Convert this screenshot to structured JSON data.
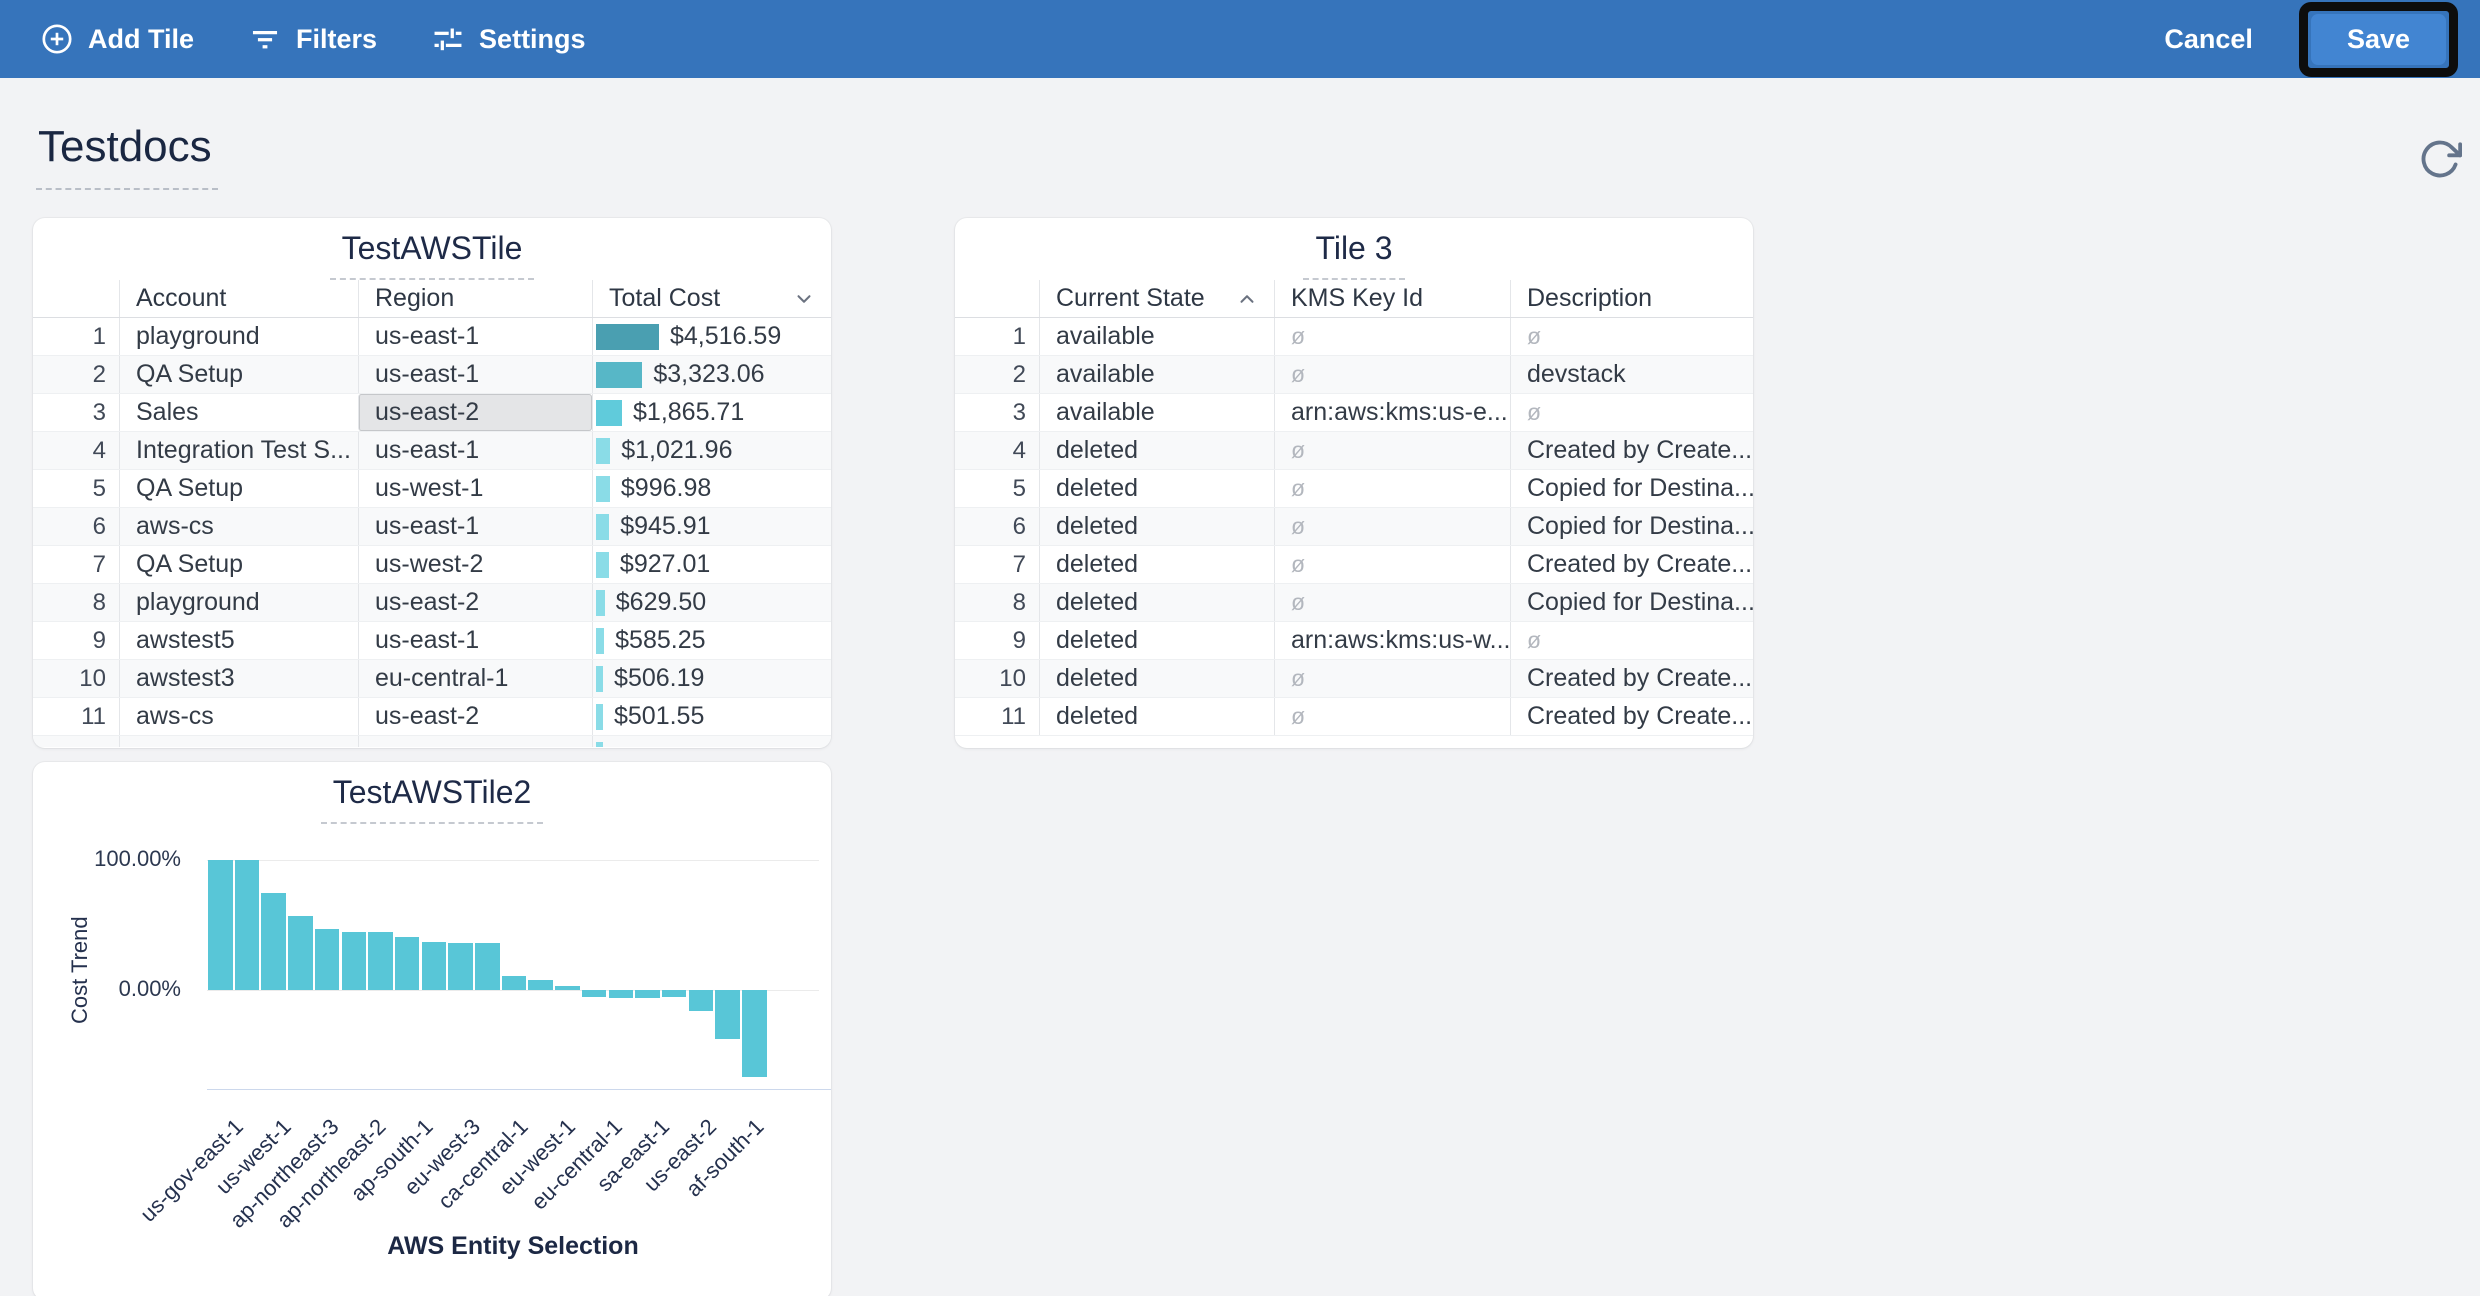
{
  "topbar": {
    "bg_color": "#3674bb",
    "add_tile": "Add Tile",
    "filters": "Filters",
    "settings": "Settings",
    "cancel": "Cancel",
    "save": "Save",
    "save_button_color": "#4285d2",
    "save_highlight_border_color": "#0d0d0d"
  },
  "page": {
    "title": "Testdocs"
  },
  "tiles": {
    "table1": {
      "title": "TestAWSTile",
      "columns": [
        "Account",
        "Region",
        "Total Cost"
      ],
      "sort": {
        "column": "Total Cost",
        "direction": "desc",
        "icon": "chevron-down-icon"
      },
      "bar_max_value": 4516.59,
      "selected_cell": {
        "row": 3,
        "column": "Region"
      },
      "rows": [
        {
          "n": "1",
          "account": "playground",
          "region": "us-east-1",
          "cost_label": "$4,516.59",
          "cost_value": 4516.59,
          "bar_color": "#4a9fb1",
          "region_selected": false
        },
        {
          "n": "2",
          "account": "QA Setup",
          "region": "us-east-1",
          "cost_label": "$3,323.06",
          "cost_value": 3323.06,
          "bar_color": "#57b7c7",
          "region_selected": false
        },
        {
          "n": "3",
          "account": "Sales",
          "region": "us-east-2",
          "cost_label": "$1,865.71",
          "cost_value": 1865.71,
          "bar_color": "#60cbdb",
          "region_selected": true
        },
        {
          "n": "4",
          "account": "Integration Test S...",
          "region": "us-east-1",
          "cost_label": "$1,021.96",
          "cost_value": 1021.96,
          "bar_color": "#8adce7",
          "region_selected": false
        },
        {
          "n": "5",
          "account": "QA Setup",
          "region": "us-west-1",
          "cost_label": "$996.98",
          "cost_value": 996.98,
          "bar_color": "#8adce7",
          "region_selected": false
        },
        {
          "n": "6",
          "account": "aws-cs",
          "region": "us-east-1",
          "cost_label": "$945.91",
          "cost_value": 945.91,
          "bar_color": "#8adce7",
          "region_selected": false
        },
        {
          "n": "7",
          "account": "QA Setup",
          "region": "us-west-2",
          "cost_label": "$927.01",
          "cost_value": 927.01,
          "bar_color": "#8adce7",
          "region_selected": false
        },
        {
          "n": "8",
          "account": "playground",
          "region": "us-east-2",
          "cost_label": "$629.50",
          "cost_value": 629.5,
          "bar_color": "#8adce7",
          "region_selected": false
        },
        {
          "n": "9",
          "account": "awstest5",
          "region": "us-east-1",
          "cost_label": "$585.25",
          "cost_value": 585.25,
          "bar_color": "#8adce7",
          "region_selected": false
        },
        {
          "n": "10",
          "account": "awstest3",
          "region": "eu-central-1",
          "cost_label": "$506.19",
          "cost_value": 506.19,
          "bar_color": "#8adce7",
          "region_selected": false
        },
        {
          "n": "11",
          "account": "aws-cs",
          "region": "us-east-2",
          "cost_label": "$501.55",
          "cost_value": 501.55,
          "bar_color": "#8adce7",
          "region_selected": false
        },
        {
          "n": "",
          "account": "",
          "region": "",
          "cost_label": "",
          "cost_value": 470.0,
          "bar_color": "#8adce7",
          "region_selected": false
        }
      ]
    },
    "table2": {
      "title": "Tile 3",
      "columns": [
        "Current State",
        "KMS Key Id",
        "Description"
      ],
      "sort": {
        "column": "Current State",
        "direction": "asc",
        "icon": "chevron-up-icon"
      },
      "null_symbol": "ø",
      "rows": [
        {
          "n": "1",
          "state": "available",
          "kms": "ø",
          "kms_null": true,
          "desc": "ø",
          "desc_null": true
        },
        {
          "n": "2",
          "state": "available",
          "kms": "ø",
          "kms_null": true,
          "desc": "devstack",
          "desc_null": false
        },
        {
          "n": "3",
          "state": "available",
          "kms": "arn:aws:kms:us-e...",
          "kms_null": false,
          "desc": "ø",
          "desc_null": true
        },
        {
          "n": "4",
          "state": "deleted",
          "kms": "ø",
          "kms_null": true,
          "desc": "Created by Create...",
          "desc_null": false
        },
        {
          "n": "5",
          "state": "deleted",
          "kms": "ø",
          "kms_null": true,
          "desc": "Copied for Destina...",
          "desc_null": false
        },
        {
          "n": "6",
          "state": "deleted",
          "kms": "ø",
          "kms_null": true,
          "desc": "Copied for Destina...",
          "desc_null": false
        },
        {
          "n": "7",
          "state": "deleted",
          "kms": "ø",
          "kms_null": true,
          "desc": "Created by Create...",
          "desc_null": false
        },
        {
          "n": "8",
          "state": "deleted",
          "kms": "ø",
          "kms_null": true,
          "desc": "Copied for Destina...",
          "desc_null": false
        },
        {
          "n": "9",
          "state": "deleted",
          "kms": "arn:aws:kms:us-w...",
          "kms_null": false,
          "desc": "ø",
          "desc_null": true
        },
        {
          "n": "10",
          "state": "deleted",
          "kms": "ø",
          "kms_null": true,
          "desc": "Created by Create...",
          "desc_null": false
        },
        {
          "n": "11",
          "state": "deleted",
          "kms": "ø",
          "kms_null": true,
          "desc": "Created by Create...",
          "desc_null": false
        }
      ]
    },
    "chart": {
      "title": "TestAWSTile2",
      "ylabel": "Cost Trend",
      "xlabel": "AWS Entity Selection",
      "ytick_top": "100.00%",
      "ytick_zero": "0.00%"
    }
  },
  "chart_data": {
    "type": "bar",
    "title": "TestAWSTile2",
    "xlabel": "AWS Entity Selection",
    "ylabel": "Cost Trend",
    "bar_color": "#58c6d7",
    "grid": "horizontal gridlines at 100% and 0%, light blue baseline at plot bottom",
    "ylim_pct": [
      -75,
      105
    ],
    "yticks_shown": [
      "100.00%",
      "0.00%"
    ],
    "values_pct": [
      100,
      100,
      75,
      57,
      47,
      45,
      45,
      41,
      37,
      36,
      36,
      11,
      8,
      3,
      -5,
      -6,
      -6,
      -5,
      -16,
      -38,
      -67
    ],
    "x_tick_labels_shown": [
      "us-gov-east-1",
      "us-west-1",
      "ap-northeast-3",
      "ap-northeast-2",
      "ap-south-1",
      "eu-west-3",
      "ca-central-1",
      "eu-west-1",
      "eu-central-1",
      "sa-east-1",
      "us-east-2",
      "af-south-1"
    ]
  }
}
